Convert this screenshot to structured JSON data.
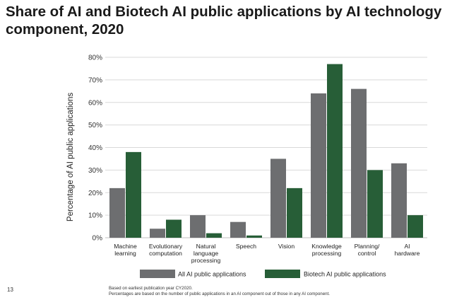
{
  "title": "Share of AI and Biotech AI public applications by AI technology component, 2020",
  "slide_number": "13",
  "footnotes": [
    "Based on earliest publication year CY2020.",
    "Percentages are based on the number of public applications in an AI component out of those in any AI component."
  ],
  "colors": {
    "all": "#6d6e70",
    "biotech": "#275e37",
    "grid": "#d9d9d9"
  },
  "chart_data": {
    "type": "bar",
    "title": "Share of AI and Biotech AI public applications by AI technology component, 2020",
    "xlabel": "",
    "ylabel": "Percentage of AI public applications",
    "ylim": [
      0,
      80
    ],
    "yticks": [
      "0%",
      "10%",
      "20%",
      "30%",
      "40%",
      "50%",
      "60%",
      "70%",
      "80%"
    ],
    "ytick_values": [
      0,
      10,
      20,
      30,
      40,
      50,
      60,
      70,
      80
    ],
    "categories": [
      [
        "Machine",
        "learning"
      ],
      [
        "Evolutionary",
        "computation"
      ],
      [
        "Natural",
        "language",
        "processing"
      ],
      [
        "Speech"
      ],
      [
        "Vision"
      ],
      [
        "Knowledge",
        "processing"
      ],
      [
        "Planning/",
        "control"
      ],
      [
        "AI",
        "hardware"
      ]
    ],
    "series": [
      {
        "name": "All AI public applications",
        "values": [
          22,
          4,
          10,
          7,
          35,
          64,
          66,
          33
        ]
      },
      {
        "name": "Biotech AI public applications",
        "values": [
          38,
          8,
          2,
          1,
          22,
          77,
          30,
          10
        ]
      }
    ],
    "legend_position": "bottom",
    "grid": true
  }
}
